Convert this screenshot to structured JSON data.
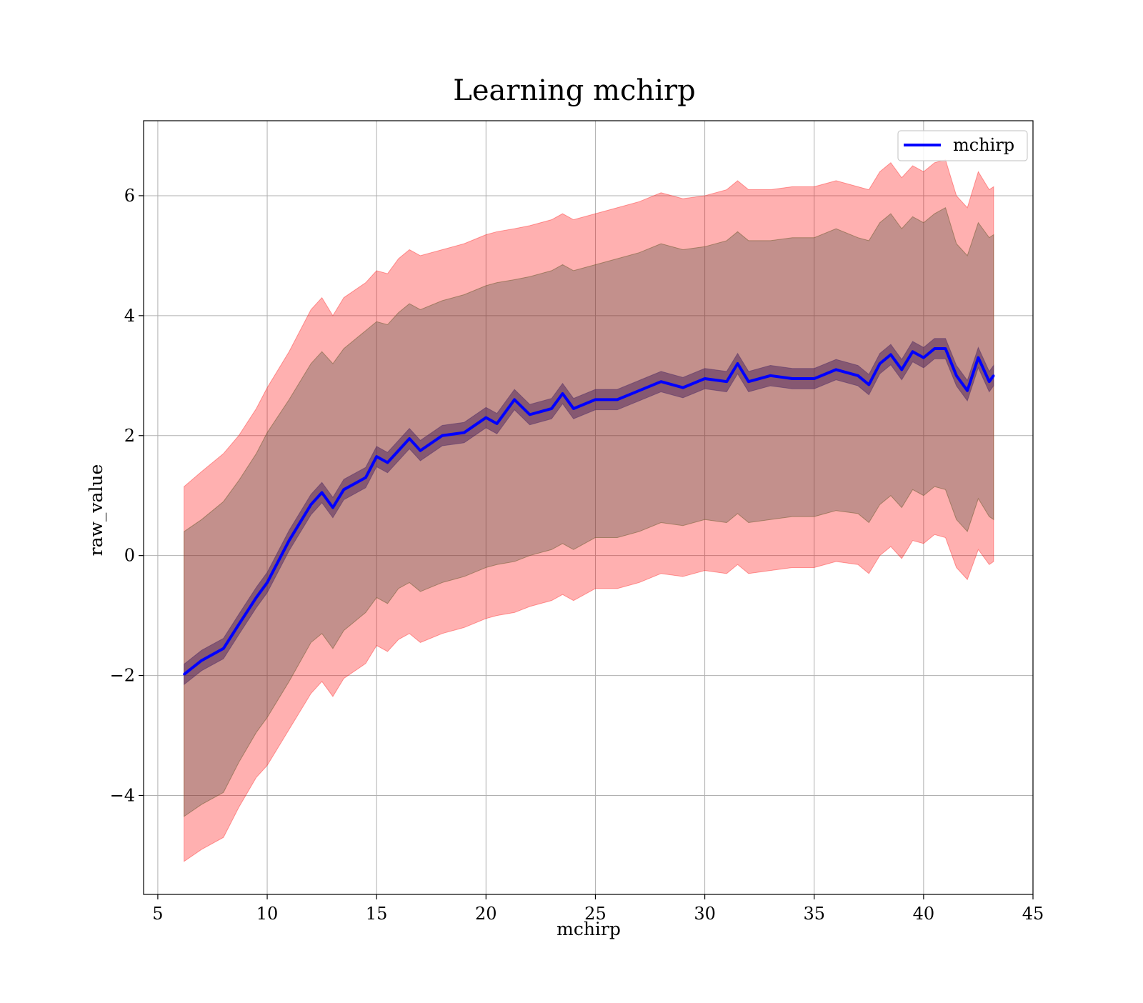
{
  "chart_data": {
    "type": "line",
    "title": "Learning mchirp",
    "xlabel": "mchirp",
    "ylabel": "raw_value",
    "xlim": [
      4.35,
      45
    ],
    "ylim": [
      -5.65,
      7.25
    ],
    "xticks": [
      5,
      10,
      15,
      20,
      25,
      30,
      35,
      40,
      45
    ],
    "yticks": [
      -4,
      -2,
      0,
      2,
      4,
      6
    ],
    "xtick_labels": [
      "5",
      "10",
      "15",
      "20",
      "25",
      "30",
      "35",
      "40",
      "45"
    ],
    "ytick_labels": [
      "−4",
      "−2",
      "0",
      "2",
      "4",
      "6"
    ],
    "grid": true,
    "legend": {
      "position": "top-right",
      "entries": [
        "mchirp"
      ]
    },
    "series": [
      {
        "name": "mchirp",
        "color": "#0000ff",
        "x": [
          6.2,
          7.0,
          8.0,
          8.7,
          9.5,
          10.0,
          11.0,
          12.0,
          12.5,
          13.0,
          13.5,
          14.5,
          15.0,
          15.5,
          16.0,
          16.5,
          17.0,
          18.0,
          19.0,
          20.0,
          20.5,
          21.3,
          22.0,
          23.0,
          23.5,
          24.0,
          25.0,
          26.0,
          27.0,
          28.0,
          29.0,
          30.0,
          31.0,
          31.5,
          32.0,
          33.0,
          34.0,
          35.0,
          36.0,
          37.0,
          37.5,
          38.0,
          38.5,
          39.0,
          39.5,
          40.0,
          40.5,
          41.0,
          41.5,
          42.0,
          42.5,
          43.0,
          43.2
        ],
        "y": [
          -1.98,
          -1.75,
          -1.55,
          -1.15,
          -0.7,
          -0.45,
          0.25,
          0.85,
          1.05,
          0.8,
          1.1,
          1.3,
          1.65,
          1.55,
          1.75,
          1.95,
          1.75,
          2.0,
          2.05,
          2.3,
          2.2,
          2.6,
          2.35,
          2.45,
          2.7,
          2.45,
          2.6,
          2.6,
          2.75,
          2.9,
          2.8,
          2.95,
          2.9,
          3.2,
          2.9,
          3.0,
          2.95,
          2.95,
          3.1,
          3.0,
          2.85,
          3.2,
          3.35,
          3.1,
          3.4,
          3.3,
          3.45,
          3.45,
          3.0,
          2.75,
          3.3,
          2.9,
          3.0
        ]
      }
    ],
    "bands": [
      {
        "color": "#ff0000",
        "opacity": 0.31,
        "values_label": "outer band"
      },
      {
        "color": "#3c4b3c",
        "opacity": 0.31,
        "values_label": "inner band"
      },
      {
        "color": "#3c1450",
        "opacity": 0.45,
        "values_label": "narrow band"
      }
    ],
    "outer_upper": [
      1.15,
      1.4,
      1.7,
      2.0,
      2.45,
      2.8,
      3.4,
      4.1,
      4.3,
      4.0,
      4.3,
      4.55,
      4.75,
      4.7,
      4.95,
      5.1,
      5.0,
      5.1,
      5.2,
      5.35,
      5.4,
      5.45,
      5.5,
      5.6,
      5.7,
      5.6,
      5.7,
      5.8,
      5.9,
      6.05,
      5.95,
      6.0,
      6.1,
      6.25,
      6.1,
      6.1,
      6.15,
      6.15,
      6.25,
      6.15,
      6.1,
      6.4,
      6.55,
      6.3,
      6.5,
      6.4,
      6.55,
      6.6,
      6.0,
      5.8,
      6.4,
      6.1,
      6.15
    ],
    "outer_lower": [
      -5.1,
      -4.9,
      -4.7,
      -4.2,
      -3.7,
      -3.5,
      -2.9,
      -2.3,
      -2.1,
      -2.35,
      -2.05,
      -1.8,
      -1.5,
      -1.6,
      -1.4,
      -1.3,
      -1.45,
      -1.3,
      -1.2,
      -1.05,
      -1.0,
      -0.95,
      -0.85,
      -0.75,
      -0.65,
      -0.75,
      -0.55,
      -0.55,
      -0.45,
      -0.3,
      -0.35,
      -0.25,
      -0.3,
      -0.15,
      -0.3,
      -0.25,
      -0.2,
      -0.2,
      -0.1,
      -0.15,
      -0.3,
      0.0,
      0.15,
      -0.05,
      0.25,
      0.2,
      0.35,
      0.3,
      -0.2,
      -0.4,
      0.1,
      -0.15,
      -0.1
    ],
    "inner_upper": [
      0.4,
      0.6,
      0.9,
      1.25,
      1.7,
      2.05,
      2.6,
      3.2,
      3.4,
      3.2,
      3.45,
      3.75,
      3.9,
      3.85,
      4.05,
      4.2,
      4.1,
      4.25,
      4.35,
      4.5,
      4.55,
      4.6,
      4.65,
      4.75,
      4.85,
      4.75,
      4.85,
      4.95,
      5.05,
      5.2,
      5.1,
      5.15,
      5.25,
      5.4,
      5.25,
      5.25,
      5.3,
      5.3,
      5.45,
      5.3,
      5.25,
      5.55,
      5.7,
      5.45,
      5.65,
      5.55,
      5.7,
      5.8,
      5.2,
      5.0,
      5.55,
      5.3,
      5.35
    ],
    "inner_lower": [
      -4.35,
      -4.15,
      -3.95,
      -3.45,
      -2.95,
      -2.7,
      -2.1,
      -1.45,
      -1.3,
      -1.55,
      -1.25,
      -0.95,
      -0.7,
      -0.8,
      -0.55,
      -0.45,
      -0.6,
      -0.45,
      -0.35,
      -0.2,
      -0.15,
      -0.1,
      0.0,
      0.1,
      0.2,
      0.1,
      0.3,
      0.3,
      0.4,
      0.55,
      0.5,
      0.6,
      0.55,
      0.7,
      0.55,
      0.6,
      0.65,
      0.65,
      0.75,
      0.7,
      0.55,
      0.85,
      1.0,
      0.8,
      1.1,
      1.0,
      1.15,
      1.1,
      0.6,
      0.4,
      0.95,
      0.65,
      0.6
    ],
    "band_halfwidth": 0.17
  }
}
